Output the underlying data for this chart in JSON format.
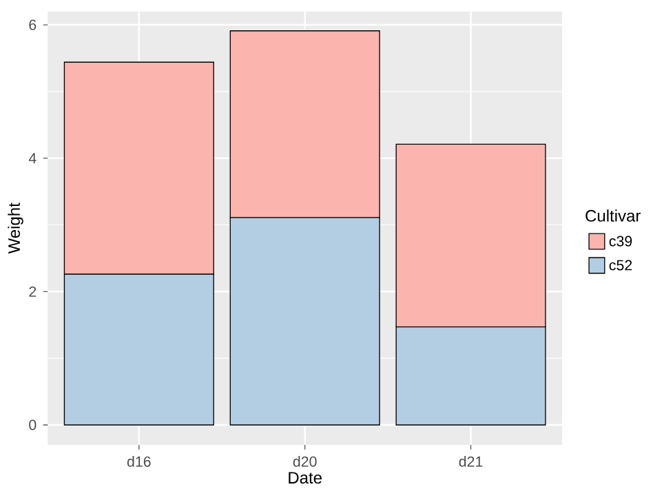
{
  "chart_data": {
    "type": "bar",
    "stacked": true,
    "xlabel": "Date",
    "ylabel": "Weight",
    "legend_title": "Cultivar",
    "legend": "right",
    "grid": true,
    "categories": [
      "d16",
      "d20",
      "d21"
    ],
    "series": [
      {
        "name": "c52",
        "color": "#b3cde3",
        "values": [
          2.26,
          3.11,
          1.47
        ]
      },
      {
        "name": "c39",
        "color": "#fbb4ae",
        "values": [
          3.18,
          2.8,
          2.74
        ]
      }
    ],
    "ylim": [
      -0.3,
      6.2
    ],
    "yticks": [
      0,
      2,
      4,
      6
    ]
  }
}
